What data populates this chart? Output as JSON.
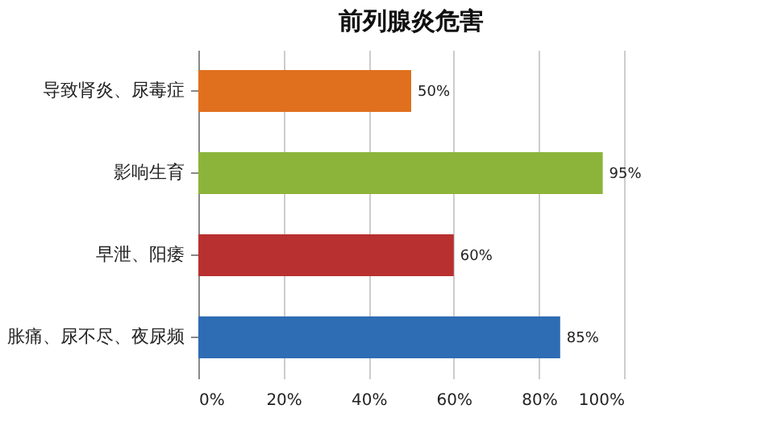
{
  "chart_data": {
    "type": "bar",
    "orientation": "horizontal",
    "title": "前列腺炎危害",
    "categories": [
      "导致肾炎、尿毒症",
      "影响生育",
      "早泄、阳痿",
      "胀痛、尿不尽、夜尿频"
    ],
    "values": [
      50,
      95,
      60,
      85
    ],
    "colors": [
      "#e0701e",
      "#8cb43a",
      "#b83030",
      "#2e6cb4"
    ],
    "value_labels": [
      "50%",
      "95%",
      "60%",
      "85%"
    ],
    "xlim": [
      0,
      100
    ],
    "xticks": [
      {
        "value": 0,
        "label": "0%"
      },
      {
        "value": 20,
        "label": "20%"
      },
      {
        "value": 40,
        "label": "40%"
      },
      {
        "value": 60,
        "label": "60%"
      },
      {
        "value": 80,
        "label": "80%"
      },
      {
        "value": 100,
        "label": "100%"
      }
    ],
    "grid": "x"
  }
}
